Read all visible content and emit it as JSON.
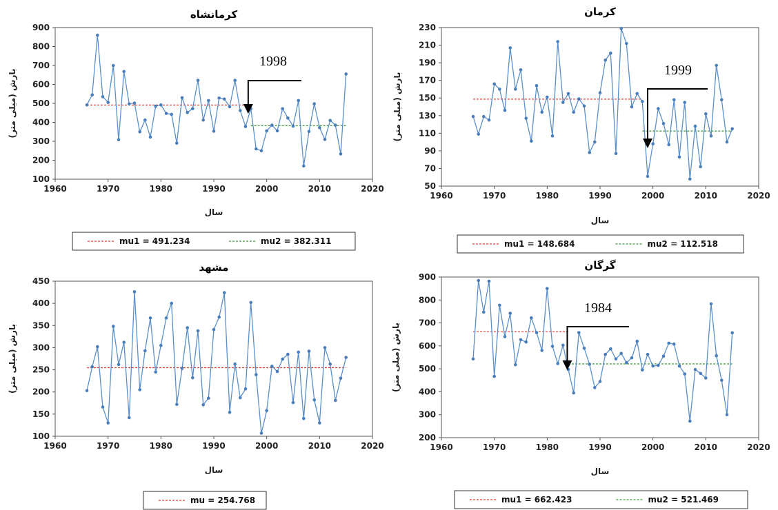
{
  "figure": {
    "colors": {
      "series": "#5b8fca",
      "marker": "#4a7ebb",
      "mean1": "#e03c31",
      "mean2": "#3a9a3a",
      "axis": "#999999",
      "frame": "#555555",
      "arrow": "#000000"
    }
  },
  "chart_data": [
    {
      "type": "line",
      "title": "کرمانشاه",
      "xlabel": "سال",
      "ylabel": "بارش (میلی متر)",
      "xlim": [
        1960,
        2020
      ],
      "ylim": [
        100,
        900
      ],
      "xticks": [
        "1960",
        "1970",
        "1980",
        "1990",
        "2000",
        "2010",
        "2020"
      ],
      "yticks": [
        "100",
        "200",
        "300",
        "400",
        "500",
        "600",
        "700",
        "800",
        "900"
      ],
      "x_start": 1966,
      "series": [
        {
          "values": [
            492,
            545,
            860,
            535,
            505,
            700,
            308,
            668,
            497,
            502,
            350,
            412,
            322,
            485,
            492,
            447,
            442,
            290,
            530,
            452,
            472,
            622,
            412,
            515,
            353,
            528,
            523,
            482,
            622,
            462,
            378,
            472,
            260,
            250,
            355,
            385,
            355,
            472,
            423,
            380,
            515,
            170,
            352,
            498,
            372,
            310,
            410,
            385,
            233,
            655
          ]
        }
      ],
      "means": [
        {
          "label": "mu1 = 491.234",
          "value": 491.234,
          "from": 1966,
          "to": 1997
        },
        {
          "label": "mu2 = 382.311",
          "value": 382.311,
          "from": 1997,
          "to": 2015
        }
      ],
      "annotation": {
        "text": "1998",
        "year": 1996.5
      }
    },
    {
      "type": "line",
      "title": "کرمان",
      "xlabel": "سال",
      "ylabel": "بارش (میلی متر)",
      "xlim": [
        1960,
        2020
      ],
      "ylim": [
        50,
        230
      ],
      "xticks": [
        "1960",
        "1970",
        "1980",
        "1990",
        "2000",
        "2010",
        "2020"
      ],
      "yticks": [
        "50",
        "70",
        "90",
        "110",
        "130",
        "150",
        "170",
        "190",
        "210",
        "230"
      ],
      "x_start": 1966,
      "series": [
        {
          "values": [
            129,
            109,
            129,
            125,
            166,
            160,
            136,
            207,
            160,
            182,
            127,
            101,
            164,
            134,
            151,
            107,
            214,
            145,
            155,
            134,
            149,
            141,
            88,
            100,
            156,
            193,
            201,
            87,
            229,
            212,
            140,
            155,
            146,
            61,
            98,
            138,
            121,
            97,
            148,
            83,
            145,
            58,
            118,
            72,
            132,
            107,
            187,
            148,
            100,
            115
          ]
        }
      ],
      "means": [
        {
          "label": "mu1 = 148.684",
          "value": 148.684,
          "from": 1966,
          "to": 1998
        },
        {
          "label": "mu2 = 112.518",
          "value": 112.518,
          "from": 1998,
          "to": 2015
        }
      ],
      "annotation": {
        "text": "1999",
        "year": 1999
      }
    },
    {
      "type": "line",
      "title": "مشهد",
      "xlabel": "سال",
      "ylabel": "بارش (میلی متر)",
      "xlim": [
        1960,
        2020
      ],
      "ylim": [
        100,
        450
      ],
      "xticks": [
        "1960",
        "1970",
        "1980",
        "1990",
        "2000",
        "2010",
        "2020"
      ],
      "yticks": [
        "100",
        "150",
        "200",
        "250",
        "300",
        "350",
        "400",
        "450"
      ],
      "x_start": 1966,
      "series": [
        {
          "values": [
            203,
            257,
            302,
            166,
            130,
            348,
            262,
            312,
            142,
            426,
            205,
            293,
            367,
            245,
            305,
            367,
            400,
            172,
            253,
            345,
            232,
            338,
            171,
            186,
            341,
            369,
            424,
            154,
            263,
            187,
            207,
            402,
            239,
            107,
            158,
            258,
            246,
            274,
            285,
            176,
            290,
            140,
            292,
            182,
            130,
            300,
            263,
            181,
            231,
            278
          ]
        }
      ],
      "means": [
        {
          "label": "mu = 254.768",
          "value": 254.768,
          "from": 1966,
          "to": 2015
        }
      ]
    },
    {
      "type": "line",
      "title": "گرگان",
      "xlabel": "سال",
      "ylabel": "بارش (میلی متر)",
      "xlim": [
        1960,
        2020
      ],
      "ylim": [
        200,
        900
      ],
      "xticks": [
        "1960",
        "1970",
        "1980",
        "1990",
        "2000",
        "2010",
        "2020"
      ],
      "yticks": [
        "200",
        "300",
        "400",
        "500",
        "600",
        "700",
        "800",
        "900"
      ],
      "x_start": 1966,
      "series": [
        {
          "values": [
            543,
            885,
            747,
            882,
            467,
            777,
            640,
            742,
            518,
            627,
            617,
            722,
            658,
            580,
            850,
            598,
            523,
            603,
            497,
            395,
            658,
            590,
            520,
            418,
            445,
            563,
            587,
            543,
            567,
            527,
            548,
            620,
            495,
            563,
            512,
            515,
            555,
            612,
            608,
            512,
            478,
            272,
            497,
            480,
            460,
            783,
            557,
            450,
            300,
            657
          ]
        }
      ],
      "means": [
        {
          "label": "mu1 = 662.423",
          "value": 662.423,
          "from": 1966,
          "to": 1984
        },
        {
          "label": "mu2 = 521.469",
          "value": 521.469,
          "from": 1984,
          "to": 2015
        }
      ],
      "annotation": {
        "text": "1984",
        "year": 1983.8
      }
    }
  ]
}
